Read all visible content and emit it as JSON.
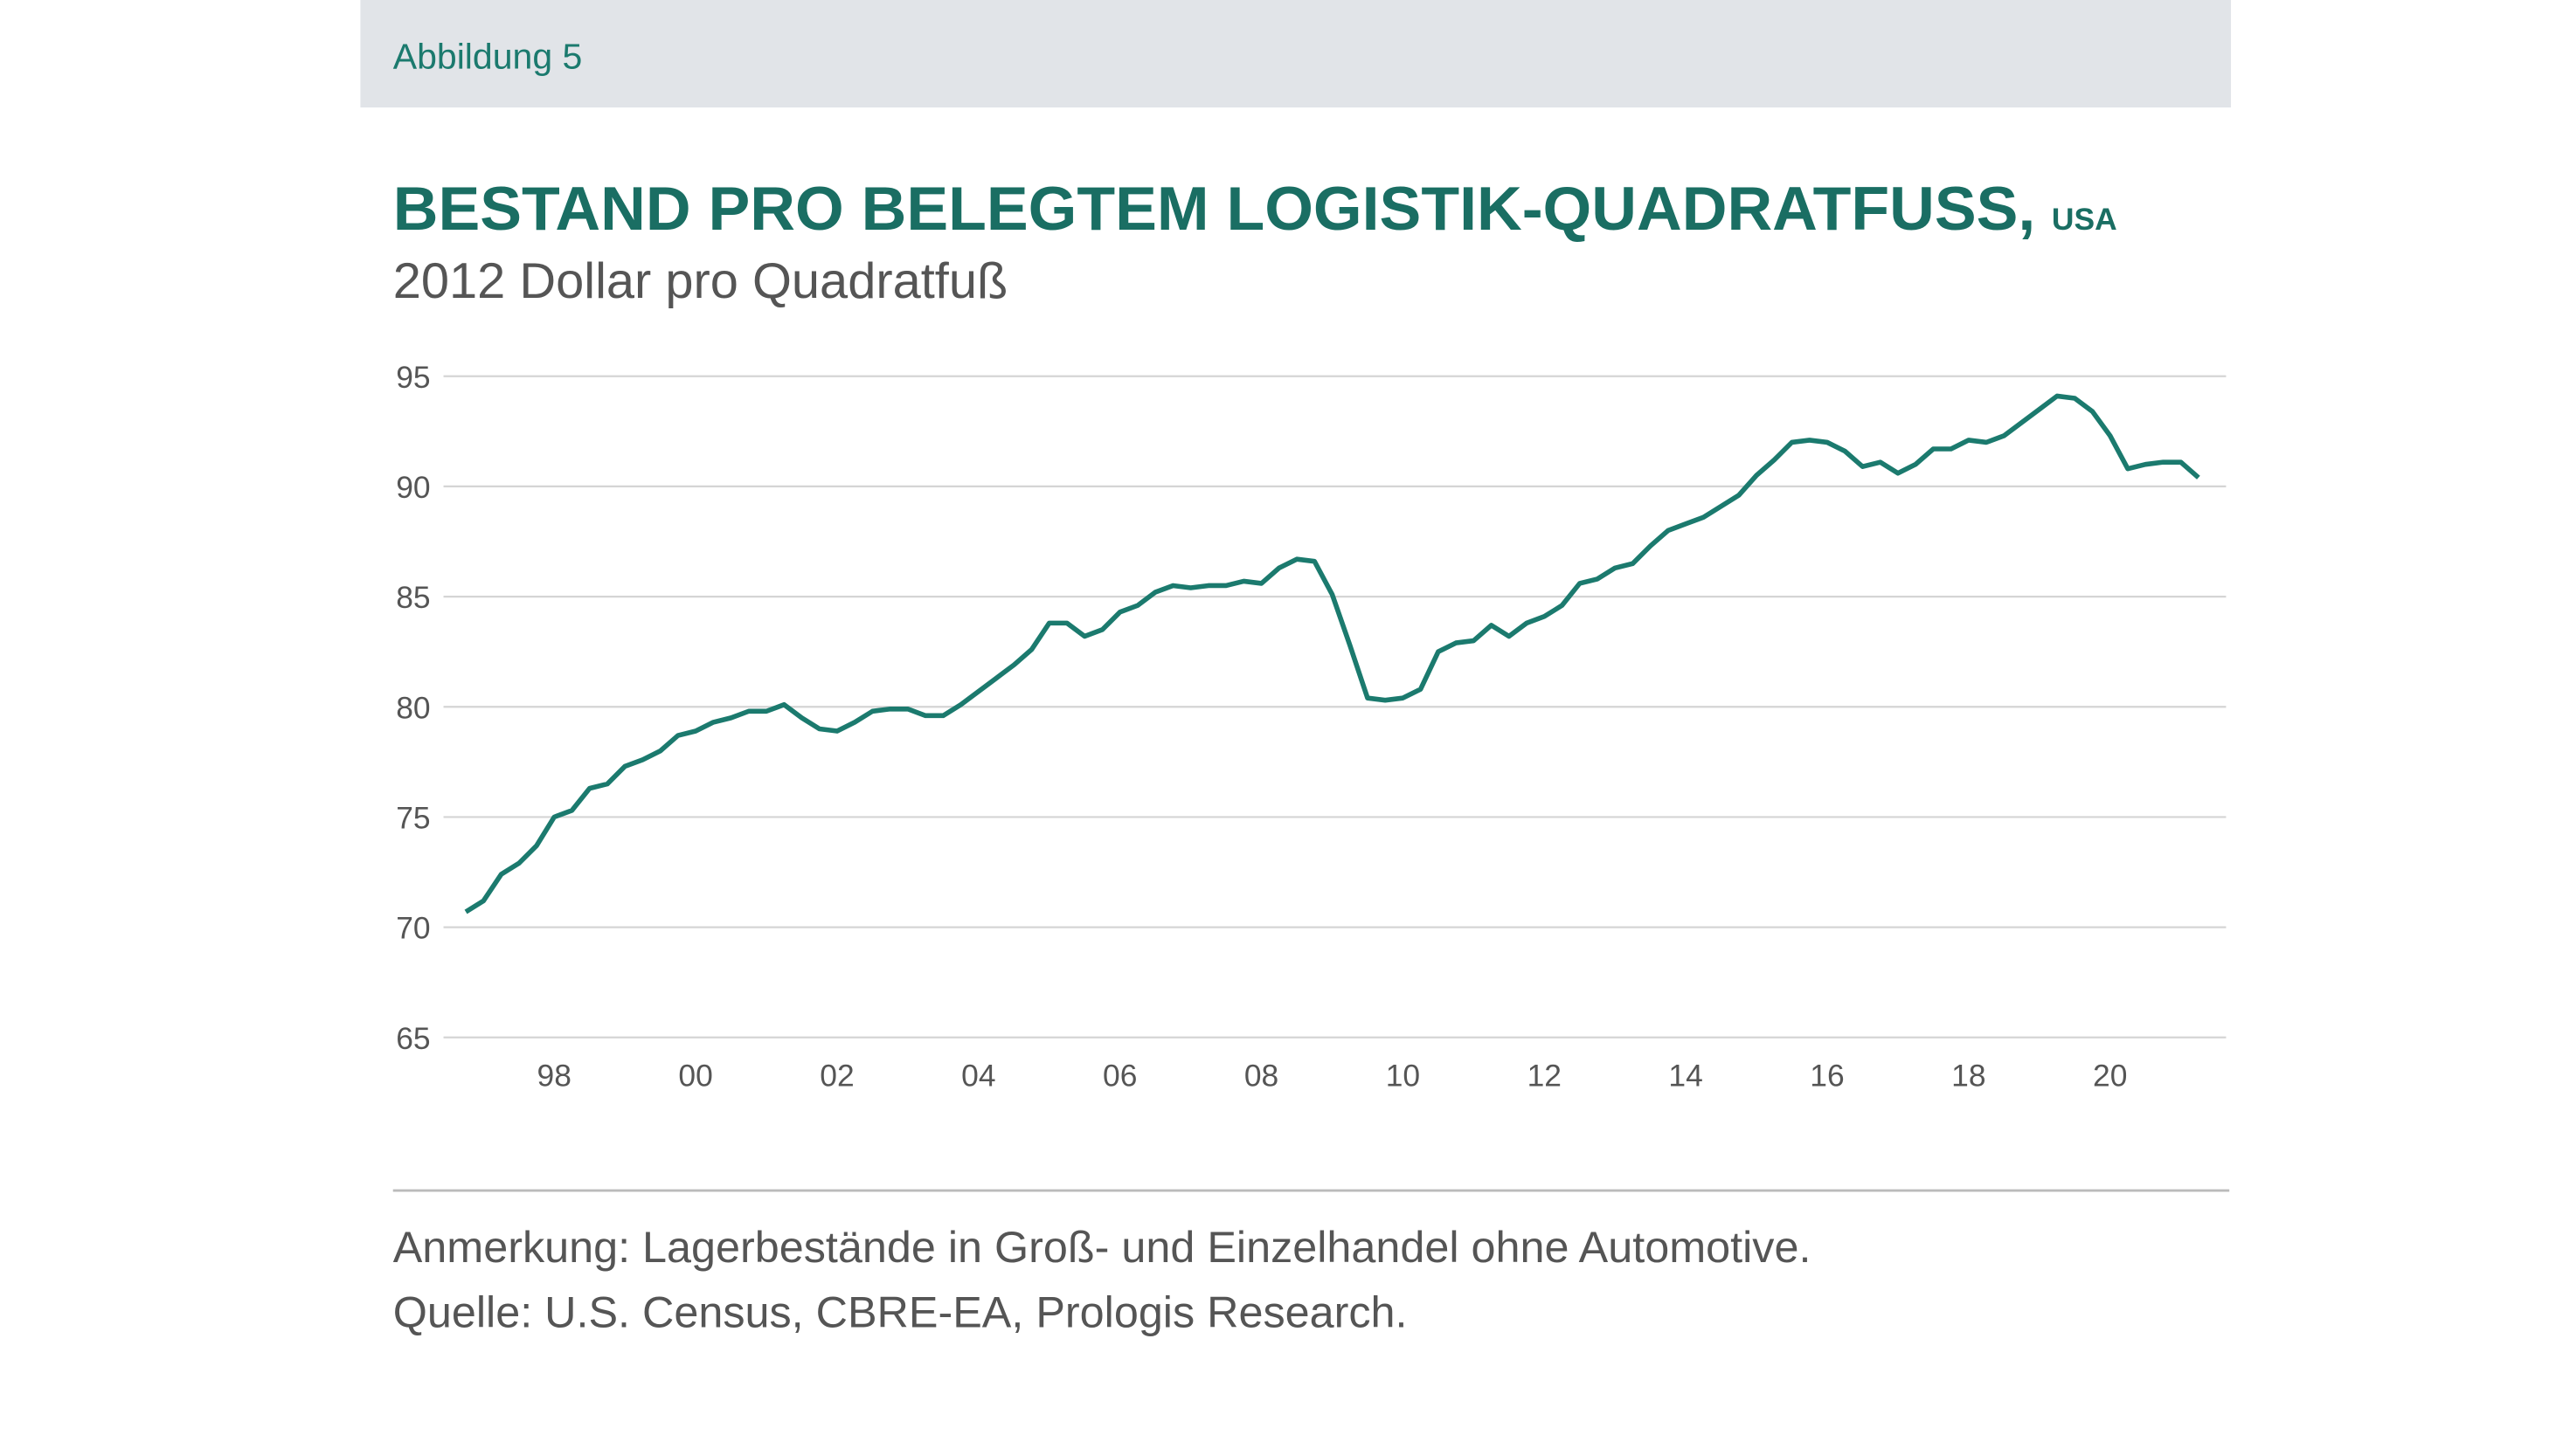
{
  "header": {
    "label": "Abbildung 5"
  },
  "chart_data": {
    "type": "line",
    "title": "BESTAND PRO BELEGTEM LOGISTIK-QUADRATFUSS,",
    "title_region": "USA",
    "subtitle": "2012 Dollar pro Quadratfuß",
    "color": "#1b7a6e",
    "x": [
      1996.75,
      1997,
      1997.25,
      1997.5,
      1997.75,
      1998,
      1998.25,
      1998.5,
      1998.75,
      1999,
      1999.25,
      1999.5,
      1999.75,
      2000,
      2000.25,
      2000.5,
      2000.75,
      2001,
      2001.25,
      2001.5,
      2001.75,
      2002,
      2002.25,
      2002.5,
      2002.75,
      2003,
      2003.25,
      2003.5,
      2003.75,
      2004,
      2004.25,
      2004.5,
      2004.75,
      2005,
      2005.25,
      2005.5,
      2005.75,
      2006,
      2006.25,
      2006.5,
      2006.75,
      2007,
      2007.25,
      2007.5,
      2007.75,
      2008,
      2008.25,
      2008.5,
      2008.75,
      2009,
      2009.25,
      2009.5,
      2009.75,
      2010,
      2010.25,
      2010.5,
      2010.75,
      2011,
      2011.25,
      2011.5,
      2011.75,
      2012,
      2012.25,
      2012.5,
      2012.75,
      2013,
      2013.25,
      2013.5,
      2013.75,
      2014,
      2014.25,
      2014.5,
      2014.75,
      2015,
      2015.25,
      2015.5,
      2015.75,
      2016,
      2016.25,
      2016.5,
      2016.75,
      2017,
      2017.25,
      2017.5,
      2017.75,
      2018,
      2018.25,
      2018.5,
      2018.75,
      2019,
      2019.25,
      2019.5,
      2019.75,
      2020,
      2020.25,
      2020.5,
      2020.75,
      2021,
      2021.25
    ],
    "values": [
      70.7,
      71.2,
      72.4,
      72.9,
      73.7,
      75.0,
      75.3,
      76.3,
      76.5,
      77.3,
      77.6,
      78.0,
      78.7,
      78.9,
      79.3,
      79.5,
      79.8,
      79.8,
      80.1,
      79.5,
      79.0,
      78.9,
      79.3,
      79.8,
      79.9,
      79.9,
      79.6,
      79.6,
      80.1,
      80.7,
      81.3,
      81.9,
      82.6,
      83.8,
      83.8,
      83.2,
      83.5,
      84.3,
      84.6,
      85.2,
      85.5,
      85.4,
      85.5,
      85.5,
      85.7,
      85.6,
      86.3,
      86.7,
      86.6,
      85.1,
      82.8,
      80.4,
      80.3,
      80.4,
      80.8,
      82.5,
      82.9,
      83.0,
      83.7,
      83.2,
      83.8,
      84.1,
      84.6,
      85.6,
      85.8,
      86.3,
      86.5,
      87.3,
      88.0,
      88.3,
      88.6,
      89.1,
      89.6,
      90.5,
      91.2,
      92.0,
      92.1,
      92.0,
      91.6,
      90.9,
      91.1,
      90.6,
      91.0,
      91.7,
      91.7,
      92.1,
      92.0,
      92.3,
      92.9,
      93.5,
      94.1,
      94.0,
      93.4,
      92.3,
      90.8,
      91.0,
      91.1,
      91.1,
      90.4
    ],
    "xlim": [
      1995.72,
      2021.64
    ],
    "xticks": [
      {
        "value": 1998,
        "label": "98"
      },
      {
        "value": 2000,
        "label": "00"
      },
      {
        "value": 2002,
        "label": "02"
      },
      {
        "value": 2004,
        "label": "04"
      },
      {
        "value": 2006,
        "label": "06"
      },
      {
        "value": 2008,
        "label": "08"
      },
      {
        "value": 2010,
        "label": "10"
      },
      {
        "value": 2012,
        "label": "12"
      },
      {
        "value": 2014,
        "label": "14"
      },
      {
        "value": 2016,
        "label": "16"
      },
      {
        "value": 2018,
        "label": "18"
      },
      {
        "value": 2020,
        "label": "20"
      }
    ],
    "ylim": [
      65,
      95
    ],
    "yticks": [
      65,
      70,
      75,
      80,
      85,
      90,
      95
    ],
    "grid": true
  },
  "footer": {
    "note": "Anmerkung: Lagerbestände in Groß- und Einzelhandel ohne Automotive.",
    "source": "Quelle: U.S. Census, CBRE-EA, Prologis Research."
  }
}
